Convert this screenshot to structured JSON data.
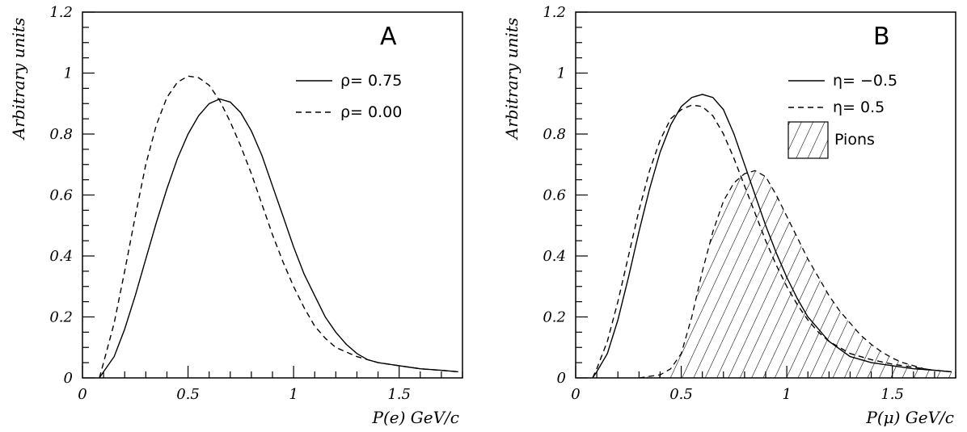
{
  "chart_data": [
    {
      "type": "line",
      "panel_label": "A",
      "xlabel": "P(e)  GeV/c",
      "ylabel": "Arbitrary units",
      "xlim": [
        0,
        1.8
      ],
      "ylim": [
        0,
        1.2
      ],
      "x_ticks": [
        "0",
        "0.5",
        "1",
        "1.5"
      ],
      "x_tick_values": [
        0,
        0.5,
        1,
        1.5
      ],
      "y_ticks": [
        "0",
        "0.2",
        "0.4",
        "0.6",
        "0.8",
        "1",
        "1.2"
      ],
      "y_tick_values": [
        0,
        0.2,
        0.4,
        0.6,
        0.8,
        1.0,
        1.2
      ],
      "grid": false,
      "legend_position": "top-right",
      "series": [
        {
          "name": "ρ= 0.75",
          "style": "solid",
          "x": [
            0.08,
            0.1,
            0.15,
            0.2,
            0.25,
            0.3,
            0.35,
            0.4,
            0.45,
            0.5,
            0.55,
            0.6,
            0.65,
            0.7,
            0.75,
            0.8,
            0.85,
            0.9,
            0.95,
            1.0,
            1.05,
            1.1,
            1.15,
            1.2,
            1.25,
            1.3,
            1.35,
            1.4,
            1.5,
            1.6,
            1.7,
            1.78
          ],
          "values": [
            0.0,
            0.02,
            0.07,
            0.16,
            0.27,
            0.39,
            0.51,
            0.62,
            0.72,
            0.8,
            0.86,
            0.9,
            0.915,
            0.905,
            0.87,
            0.81,
            0.73,
            0.63,
            0.53,
            0.43,
            0.34,
            0.27,
            0.2,
            0.15,
            0.11,
            0.08,
            0.06,
            0.05,
            0.04,
            0.03,
            0.025,
            0.02
          ]
        },
        {
          "name": "ρ= 0.00",
          "style": "dashed",
          "x": [
            0.08,
            0.1,
            0.15,
            0.2,
            0.25,
            0.3,
            0.35,
            0.4,
            0.45,
            0.5,
            0.55,
            0.6,
            0.65,
            0.7,
            0.75,
            0.8,
            0.85,
            0.9,
            0.95,
            1.0,
            1.05,
            1.1,
            1.15,
            1.2,
            1.3,
            1.4,
            1.5,
            1.6,
            1.7,
            1.78
          ],
          "values": [
            0.0,
            0.05,
            0.18,
            0.35,
            0.53,
            0.7,
            0.83,
            0.92,
            0.97,
            0.99,
            0.985,
            0.96,
            0.91,
            0.84,
            0.76,
            0.67,
            0.57,
            0.47,
            0.38,
            0.3,
            0.23,
            0.17,
            0.13,
            0.1,
            0.07,
            0.05,
            0.04,
            0.03,
            0.025,
            0.02
          ]
        }
      ]
    },
    {
      "type": "line",
      "panel_label": "B",
      "xlabel": "P(μ)  GeV/c",
      "ylabel": "Arbitrary units",
      "xlim": [
        0,
        1.8
      ],
      "ylim": [
        0,
        1.2
      ],
      "x_ticks": [
        "0",
        "0.5",
        "1",
        "1.5"
      ],
      "x_tick_values": [
        0,
        0.5,
        1,
        1.5
      ],
      "y_ticks": [
        "0",
        "0.2",
        "0.4",
        "0.6",
        "0.8",
        "1",
        "1.2"
      ],
      "y_tick_values": [
        0,
        0.2,
        0.4,
        0.6,
        0.8,
        1.0,
        1.2
      ],
      "grid": false,
      "legend_position": "top-right",
      "series": [
        {
          "name": "η= −0.5",
          "style": "solid",
          "x": [
            0.08,
            0.1,
            0.15,
            0.2,
            0.25,
            0.3,
            0.35,
            0.4,
            0.45,
            0.5,
            0.55,
            0.6,
            0.65,
            0.7,
            0.75,
            0.8,
            0.85,
            0.9,
            0.95,
            1.0,
            1.05,
            1.1,
            1.15,
            1.2,
            1.3,
            1.4,
            1.5,
            1.6,
            1.7,
            1.78
          ],
          "values": [
            0.0,
            0.02,
            0.08,
            0.19,
            0.33,
            0.48,
            0.62,
            0.74,
            0.83,
            0.89,
            0.92,
            0.93,
            0.92,
            0.88,
            0.8,
            0.7,
            0.6,
            0.5,
            0.41,
            0.33,
            0.26,
            0.2,
            0.16,
            0.12,
            0.07,
            0.05,
            0.04,
            0.03,
            0.025,
            0.02
          ]
        },
        {
          "name": "η= 0.5",
          "style": "dashed",
          "x": [
            0.08,
            0.1,
            0.15,
            0.2,
            0.25,
            0.3,
            0.35,
            0.4,
            0.45,
            0.5,
            0.55,
            0.6,
            0.65,
            0.7,
            0.75,
            0.8,
            0.85,
            0.9,
            0.95,
            1.0,
            1.05,
            1.1,
            1.15,
            1.2,
            1.3,
            1.4,
            1.5,
            1.6,
            1.7,
            1.78
          ],
          "values": [
            0.0,
            0.03,
            0.12,
            0.25,
            0.4,
            0.55,
            0.68,
            0.78,
            0.85,
            0.88,
            0.895,
            0.89,
            0.86,
            0.8,
            0.72,
            0.63,
            0.54,
            0.45,
            0.37,
            0.3,
            0.24,
            0.19,
            0.15,
            0.12,
            0.08,
            0.06,
            0.045,
            0.035,
            0.025,
            0.02
          ]
        },
        {
          "name": "Pions",
          "style": "hatched",
          "x": [
            0.3,
            0.4,
            0.45,
            0.5,
            0.55,
            0.6,
            0.65,
            0.7,
            0.75,
            0.8,
            0.85,
            0.9,
            0.95,
            1.0,
            1.05,
            1.1,
            1.15,
            1.2,
            1.25,
            1.3,
            1.35,
            1.4,
            1.45,
            1.5,
            1.55,
            1.6,
            1.65,
            1.7,
            1.78
          ],
          "values": [
            0.0,
            0.01,
            0.03,
            0.08,
            0.2,
            0.35,
            0.48,
            0.58,
            0.64,
            0.67,
            0.68,
            0.66,
            0.6,
            0.53,
            0.46,
            0.39,
            0.33,
            0.27,
            0.22,
            0.18,
            0.14,
            0.11,
            0.085,
            0.065,
            0.05,
            0.04,
            0.03,
            0.025,
            0.02
          ]
        }
      ]
    }
  ]
}
